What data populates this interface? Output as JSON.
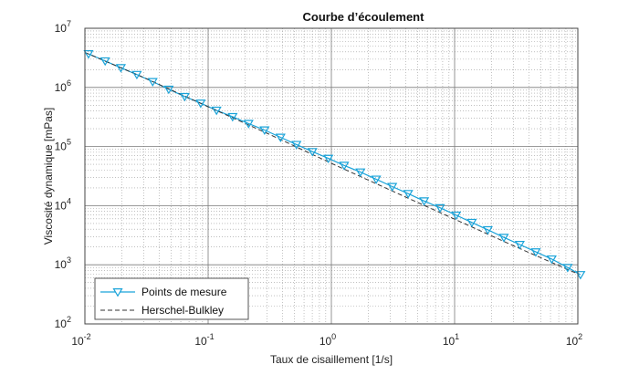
{
  "chart_data": {
    "type": "scatter",
    "title": "Courbe d’écoulement",
    "xlabel": "Taux de cisaillement [1/s]",
    "ylabel": "Viscosité dynamique [mPas]",
    "xscale": "log",
    "yscale": "log",
    "xlim": [
      0.01,
      100
    ],
    "ylim": [
      100,
      10000000
    ],
    "x_ticks": [
      {
        "value": 0.01,
        "base": "10",
        "exp": "-2"
      },
      {
        "value": 0.1,
        "base": "10",
        "exp": "-1"
      },
      {
        "value": 1,
        "base": "10",
        "exp": "0"
      },
      {
        "value": 10,
        "base": "10",
        "exp": "1"
      },
      {
        "value": 100,
        "base": "10",
        "exp": "2"
      }
    ],
    "y_ticks": [
      {
        "value": 100,
        "base": "10",
        "exp": "2"
      },
      {
        "value": 1000,
        "base": "10",
        "exp": "3"
      },
      {
        "value": 10000,
        "base": "10",
        "exp": "4"
      },
      {
        "value": 100000,
        "base": "10",
        "exp": "5"
      },
      {
        "value": 1000000,
        "base": "10",
        "exp": "6"
      },
      {
        "value": 10000000,
        "base": "10",
        "exp": "7"
      }
    ],
    "grid": true,
    "minor_grid": true,
    "legend_position": "bottom-left",
    "series": [
      {
        "name": "Points de mesure",
        "style": "markers-line",
        "marker": "triangle-down",
        "color": "#1aa3d9",
        "x": [
          0.0107,
          0.0146,
          0.0196,
          0.0264,
          0.0355,
          0.0479,
          0.0646,
          0.087,
          0.117,
          0.158,
          0.213,
          0.287,
          0.387,
          0.521,
          0.702,
          0.946,
          1.27,
          1.72,
          2.31,
          3.12,
          4.2,
          5.66,
          7.62,
          10.3,
          13.8,
          18.6,
          25.1,
          33.8,
          45.6,
          61.4,
          82.7,
          105
        ],
        "y": [
          3700000,
          2800000,
          2150000,
          1650000,
          1250000,
          930000,
          700000,
          540000,
          410000,
          320000,
          245000,
          190000,
          143000,
          108000,
          82000,
          63000,
          48000,
          37000,
          28000,
          21000,
          16000,
          12000,
          9200,
          6900,
          5200,
          3900,
          2900,
          2200,
          1650,
          1250,
          900,
          680
        ]
      },
      {
        "name": "Herschel-Bulkley",
        "style": "dashed-line",
        "color": "#333333",
        "x": [
          0.01,
          0.0316,
          0.1,
          0.316,
          1,
          3.16,
          10,
          31.6,
          100
        ],
        "y": [
          3900000,
          1400000,
          470000,
          160000,
          52000,
          17500,
          5900,
          2000,
          700
        ]
      }
    ]
  }
}
